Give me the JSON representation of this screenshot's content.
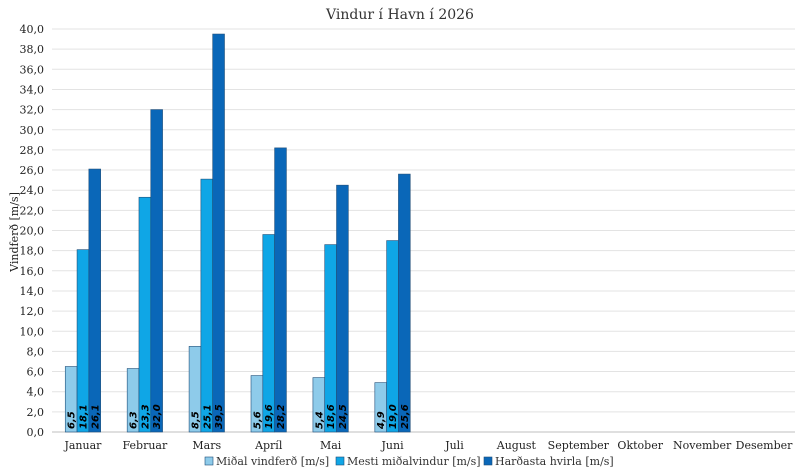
{
  "chart_data": {
    "type": "bar",
    "title": "Vindur í Havn í 2026",
    "xlabel": "",
    "ylabel": "Vindferð [m/s]",
    "ylim": [
      0,
      40
    ],
    "ytick_step": 2,
    "ytick_labels": [
      "0,0",
      "2,0",
      "4,0",
      "6,0",
      "8,0",
      "10,0",
      "12,0",
      "14,0",
      "16,0",
      "18,0",
      "20,0",
      "22,0",
      "24,0",
      "26,0",
      "28,0",
      "30,0",
      "32,0",
      "34,0",
      "36,0",
      "38,0",
      "40,0"
    ],
    "grid": true,
    "legend_position": "bottom",
    "categories": [
      "Januar",
      "Februar",
      "Mars",
      "Apríl",
      "Mai",
      "Juni",
      "Juli",
      "August",
      "September",
      "Oktober",
      "November",
      "Desember"
    ],
    "series": [
      {
        "name": "Miðal vindferð [m/s]",
        "color": "#8ecbea",
        "values": [
          6.5,
          6.3,
          8.5,
          5.6,
          5.4,
          4.9,
          null,
          null,
          null,
          null,
          null,
          null
        ],
        "labels": [
          "6,5",
          "6,3",
          "8,5",
          "5,6",
          "5,4",
          "4,9"
        ]
      },
      {
        "name": "Mesti miðalvindur [m/s]",
        "color": "#0fa6e6",
        "values": [
          18.1,
          23.3,
          25.1,
          19.6,
          18.6,
          19.0,
          null,
          null,
          null,
          null,
          null,
          null
        ],
        "labels": [
          "18,1",
          "23,3",
          "25,1",
          "19,6",
          "18,6",
          "19,0"
        ]
      },
      {
        "name": "Harðasta hvirla [m/s]",
        "color": "#0a67b8",
        "values": [
          26.1,
          32.0,
          39.5,
          28.2,
          24.5,
          25.6,
          null,
          null,
          null,
          null,
          null,
          null
        ],
        "labels": [
          "26,1",
          "32,0",
          "39,5",
          "28,2",
          "24,5",
          "25,6"
        ]
      }
    ]
  }
}
